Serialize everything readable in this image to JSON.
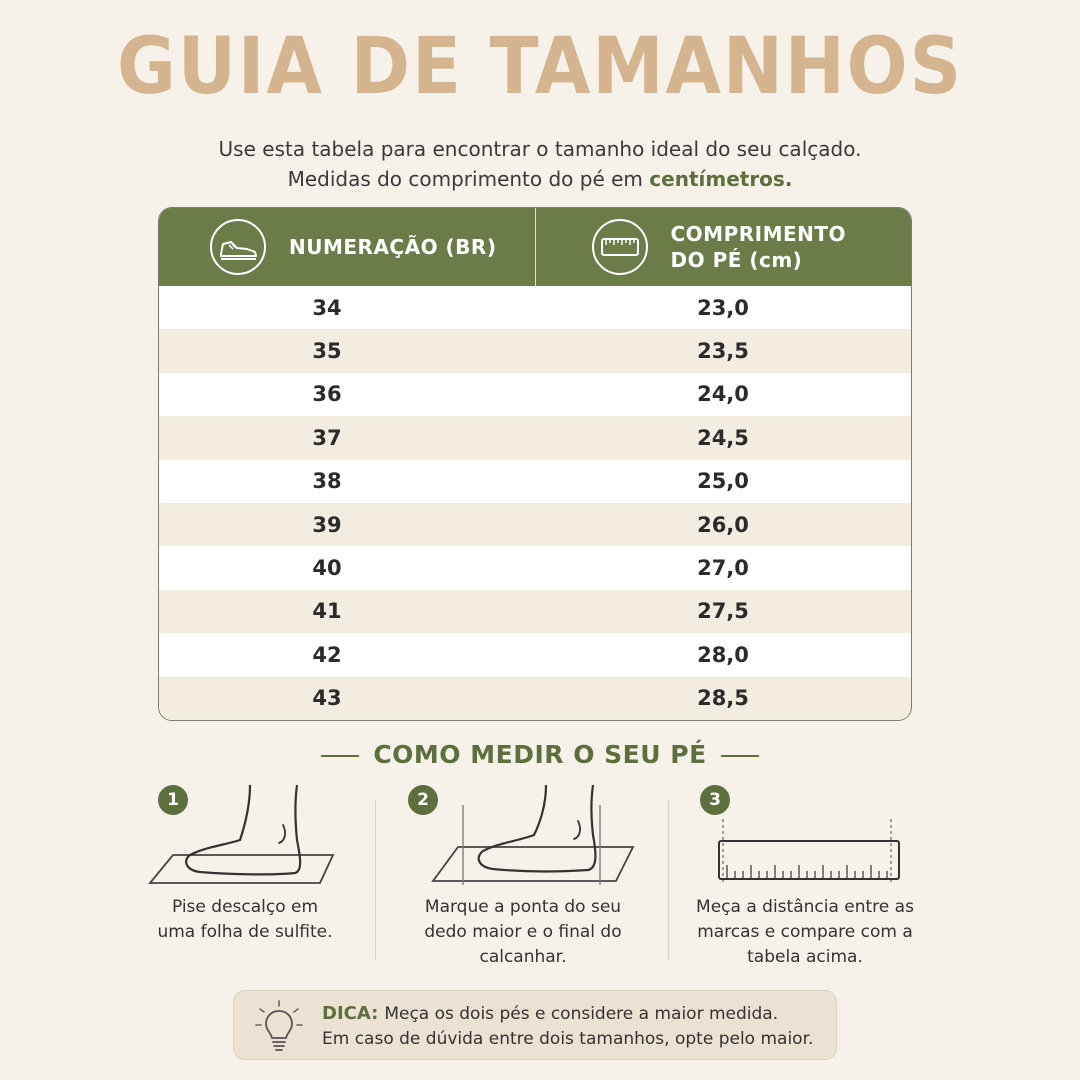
{
  "title": "GUIA DE TAMANHOS",
  "subtitle": {
    "line1": "Use esta tabela para encontrar o tamanho ideal do seu calçado.",
    "line2_prefix": "Medidas do comprimento do pé em",
    "line2_bold": "centímetros."
  },
  "table": {
    "headers": {
      "size": "NUMERAÇÃO (BR)",
      "length_line1": "COMPRIMENTO",
      "length_line2": "DO PÉ (cm)"
    },
    "rows": [
      {
        "size": "34",
        "length": "23,0"
      },
      {
        "size": "35",
        "length": "23,5"
      },
      {
        "size": "36",
        "length": "24,0"
      },
      {
        "size": "37",
        "length": "24,5"
      },
      {
        "size": "38",
        "length": "25,0"
      },
      {
        "size": "39",
        "length": "26,0"
      },
      {
        "size": "40",
        "length": "27,0"
      },
      {
        "size": "41",
        "length": "27,5"
      },
      {
        "size": "42",
        "length": "28,0"
      },
      {
        "size": "43",
        "length": "28,5"
      }
    ]
  },
  "how_to": {
    "title": "COMO MEDIR O SEU PÉ",
    "steps": [
      {
        "number": "1",
        "line1": "Pise descalço em",
        "line2": "uma folha de sulfite.",
        "line3": ""
      },
      {
        "number": "2",
        "line1": "Marque a ponta do seu",
        "line2": "dedo maior e o final do",
        "line3": "calcanhar."
      },
      {
        "number": "3",
        "line1": "Meça a distância entre as",
        "line2": "marcas e compare com a",
        "line3": "tabela acima."
      }
    ]
  },
  "tip": {
    "label": "DICA:",
    "line1": "Meça os dois pés e considere a maior medida.",
    "line2": "Em caso de dúvida entre dois tamanhos, opte pelo maior."
  },
  "colors": {
    "title": "#d5b58f",
    "header_green": "#6b7c49",
    "accent_green": "#5e6f3e",
    "row_alt": "#f3ece1",
    "background": "#f6f1e9"
  },
  "icons": {
    "size_header": "sneaker-icon",
    "length_header": "ruler-icon",
    "step1": "foot-on-paper-icon",
    "step2": "foot-marked-icon",
    "step3": "ruler-icon",
    "tip": "lightbulb-icon"
  }
}
